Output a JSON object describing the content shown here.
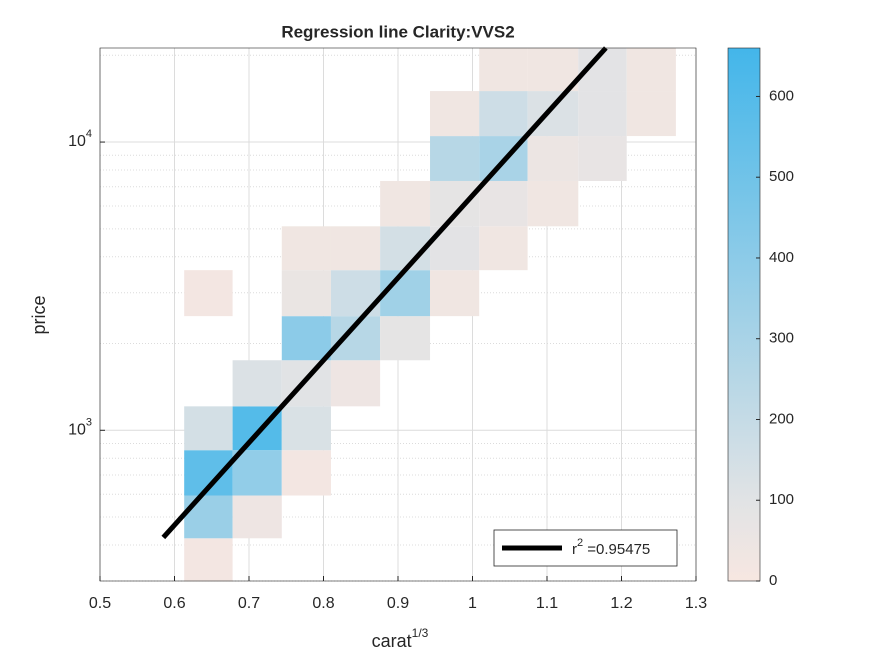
{
  "chart_data": {
    "type": "histogram2d",
    "title": "Regression line Clarity:VVS2",
    "x_label": {
      "text": "carat",
      "sup": "1/3"
    },
    "y_label": "price",
    "xlim": [
      0.5,
      1.3
    ],
    "xticks": [
      0.5,
      0.6,
      0.7,
      0.8,
      0.9,
      1,
      1.1,
      1.2,
      1.3
    ],
    "ylim": [
      300,
      21200
    ],
    "log_y": true,
    "yticks": [
      {
        "value": 1000,
        "label": "10",
        "sup": "3"
      },
      {
        "value": 10000,
        "label": "10",
        "sup": "4"
      }
    ],
    "yminorticks": [
      300,
      400,
      500,
      600,
      700,
      800,
      900,
      2000,
      3000,
      4000,
      5000,
      6000,
      7000,
      8000,
      9000,
      20000
    ],
    "grid": true,
    "xbins": [
      0.613,
      0.678,
      0.744,
      0.81,
      0.876,
      0.943,
      1.009,
      1.074,
      1.142,
      1.207,
      1.273
    ],
    "ybins": [
      299,
      422,
      594,
      853,
      1211,
      1750,
      2489,
      3594,
      5102,
      7328,
      10490,
      15030,
      21200
    ],
    "counts": [
      [
        20,
        null,
        null,
        null,
        null,
        null,
        null,
        null,
        null,
        null
      ],
      [
        350,
        40,
        null,
        null,
        null,
        null,
        null,
        null,
        null,
        null
      ],
      [
        560,
        380,
        20,
        null,
        null,
        null,
        null,
        null,
        null,
        null
      ],
      [
        150,
        600,
        130,
        null,
        null,
        null,
        null,
        null,
        null,
        null
      ],
      [
        null,
        120,
        100,
        40,
        null,
        null,
        null,
        null,
        null,
        null
      ],
      [
        null,
        null,
        400,
        250,
        80,
        null,
        null,
        null,
        null,
        null
      ],
      [
        20,
        null,
        60,
        170,
        330,
        30,
        null,
        null,
        null,
        null
      ],
      [
        null,
        null,
        30,
        30,
        150,
        90,
        30,
        null,
        null,
        null
      ],
      [
        null,
        null,
        null,
        null,
        30,
        80,
        70,
        30,
        null,
        null
      ],
      [
        null,
        null,
        null,
        null,
        null,
        250,
        300,
        50,
        70,
        null
      ],
      [
        null,
        null,
        null,
        null,
        null,
        30,
        170,
        120,
        90,
        30
      ],
      [
        null,
        null,
        null,
        null,
        null,
        null,
        30,
        30,
        90,
        30
      ]
    ],
    "colormap": [
      [
        0,
        "#f7e7e1"
      ],
      [
        100,
        "#e1e3e5"
      ],
      [
        660,
        "#43b6ea"
      ]
    ],
    "colorbar": {
      "lim": [
        0,
        660
      ],
      "ticks": [
        0,
        100,
        200,
        300,
        400,
        500,
        600
      ]
    },
    "line": {
      "name": "r",
      "name_sup": "2",
      "name_rest": " =0.95475",
      "color": "#000000",
      "x": [
        0.585,
        1.179
      ],
      "y": [
        425,
        21200
      ]
    },
    "legend_loc": "southeast"
  }
}
